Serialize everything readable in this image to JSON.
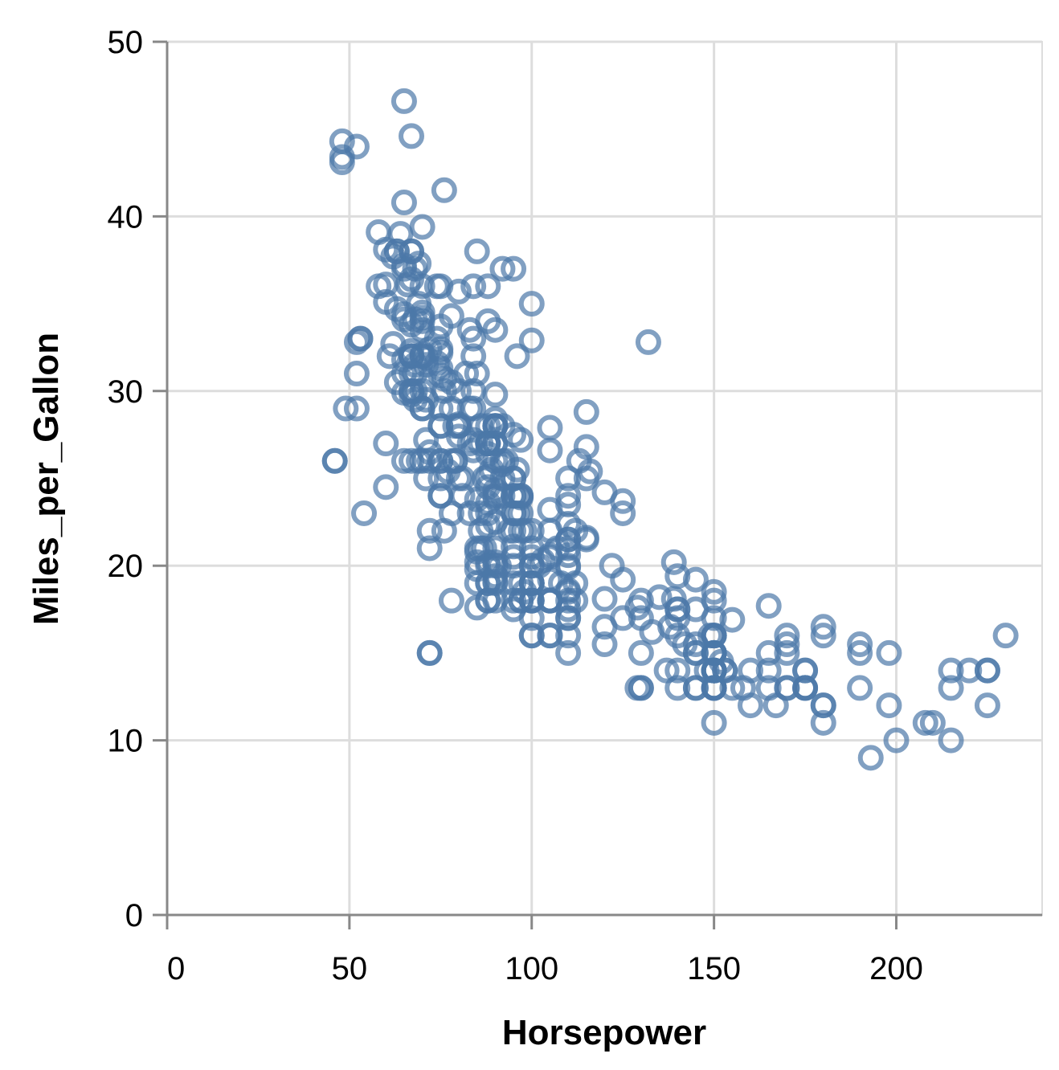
{
  "chart_data": {
    "type": "scatter",
    "x_label": "Horsepower",
    "y_label": "Miles_per_Gallon",
    "xlim": [
      0,
      240
    ],
    "ylim": [
      0,
      50
    ],
    "xticks": [
      0,
      50,
      100,
      150,
      200
    ],
    "yticks": [
      0,
      10,
      20,
      30,
      40,
      50
    ],
    "grid": true,
    "color": "#4c78a8",
    "x": [
      130,
      165,
      150,
      150,
      140,
      198,
      220,
      215,
      225,
      190,
      170,
      160,
      150,
      225,
      95,
      95,
      97,
      85,
      88,
      46,
      87,
      90,
      95,
      113,
      90,
      215,
      200,
      210,
      193,
      88,
      90,
      95,
      100,
      105,
      100,
      88,
      100,
      165,
      175,
      153,
      150,
      180,
      170,
      175,
      110,
      72,
      100,
      88,
      86,
      90,
      70,
      76,
      65,
      69,
      60,
      70,
      95,
      80,
      54,
      90,
      86,
      165,
      175,
      150,
      153,
      150,
      208,
      155,
      160,
      190,
      97,
      150,
      130,
      140,
      150,
      112,
      76,
      87,
      69,
      86,
      92,
      97,
      80,
      88,
      175,
      150,
      145,
      137,
      150,
      198,
      150,
      158,
      150,
      215,
      225,
      175,
      105,
      100,
      100,
      88,
      95,
      46,
      150,
      167,
      170,
      180,
      100,
      88,
      72,
      94,
      90,
      85,
      107,
      90,
      145,
      230,
      49,
      75,
      91,
      112,
      150,
      110,
      122,
      180,
      95,
      100,
      100,
      67,
      80,
      65,
      75,
      100,
      110,
      105,
      140,
      150,
      150,
      140,
      150,
      83,
      67,
      78,
      52,
      61,
      75,
      75,
      75,
      97,
      93,
      67,
      95,
      105,
      72,
      72,
      170,
      145,
      150,
      148,
      110,
      105,
      110,
      95,
      110,
      110,
      129,
      75,
      83,
      100,
      78,
      96,
      71,
      97,
      97,
      70,
      90,
      95,
      88,
      98,
      115,
      53,
      86,
      81,
      92,
      79,
      83,
      140,
      150,
      120,
      152,
      100,
      105,
      81,
      90,
      52,
      60,
      70,
      53,
      100,
      78,
      110,
      95,
      71,
      70,
      75,
      72,
      102,
      150,
      88,
      108,
      120,
      180,
      145,
      130,
      150,
      68,
      80,
      58,
      96,
      70,
      145,
      110,
      145,
      130,
      110,
      105,
      100,
      98,
      180,
      170,
      190,
      149,
      78,
      88,
      75,
      89,
      63,
      83,
      67,
      78,
      97,
      110,
      110,
      48,
      66,
      52,
      70,
      60,
      110,
      140,
      139,
      105,
      95,
      85,
      88,
      100,
      90,
      105,
      85,
      110,
      120,
      145,
      165,
      139,
      140,
      68,
      95,
      97,
      75,
      95,
      105,
      85,
      97,
      103,
      125,
      115,
      133,
      71,
      68,
      115,
      85,
      88,
      90,
      110,
      130,
      129,
      138,
      135,
      155,
      142,
      125,
      150,
      71,
      65,
      80,
      80,
      77,
      125,
      71,
      90,
      70,
      70,
      65,
      69,
      90,
      115,
      115,
      90,
      76,
      60,
      70,
      65,
      90,
      88,
      90,
      90,
      78,
      90,
      75,
      92,
      75,
      65,
      105,
      65,
      48,
      48,
      67,
      67,
      67,
      67,
      67,
      62,
      125,
      100,
      88,
      72,
      84,
      84,
      92,
      110,
      84,
      58,
      64,
      60,
      67,
      65,
      62,
      68,
      63,
      65,
      65,
      74,
      75,
      75,
      100,
      74,
      80,
      76,
      116,
      120,
      110,
      105,
      88,
      85,
      88,
      88,
      88,
      85,
      84,
      90,
      92,
      74,
      68,
      68,
      63,
      70,
      88,
      75,
      70,
      67,
      67,
      67,
      110,
      85,
      92,
      112,
      96,
      84,
      90,
      86,
      52,
      84,
      79,
      82,
      132,
      84,
      63,
      95,
      67,
      70,
      96,
      72,
      79
    ],
    "y": [
      18,
      15,
      18,
      16,
      17,
      15,
      14,
      14,
      14,
      15,
      15,
      14,
      15,
      14,
      24,
      22,
      18,
      21,
      27,
      26,
      25,
      24,
      25,
      26,
      21,
      10,
      10,
      11,
      9,
      27,
      28,
      25,
      19,
      16,
      17,
      19,
      18,
      14,
      14,
      14,
      14,
      12,
      13,
      13,
      18,
      22,
      19,
      18,
      23,
      28,
      30,
      30,
      31,
      35,
      27,
      26,
      24,
      25,
      23,
      20,
      21,
      13,
      14,
      15,
      14,
      17,
      11,
      13,
      12,
      13,
      19,
      15,
      13,
      13,
      14,
      18,
      22,
      21,
      26,
      22,
      28,
      23,
      28,
      27,
      13,
      14,
      13,
      14,
      15,
      12,
      13,
      13,
      14,
      13,
      12,
      13,
      18,
      16,
      18,
      18,
      23,
      26,
      11,
      12,
      13,
      12,
      18,
      20,
      21,
      22,
      18,
      19,
      21,
      26,
      15,
      16,
      29,
      24,
      20,
      19,
      15,
      24,
      20,
      11,
      20,
      21,
      19,
      32,
      28,
      26,
      25,
      16,
      16,
      18,
      16,
      13,
      14,
      14,
      14,
      29,
      26,
      26,
      31,
      32,
      28,
      24,
      26,
      24,
      26,
      31,
      19,
      18,
      15,
      15,
      16,
      15,
      16,
      14,
      17,
      16,
      15,
      18,
      21,
      20,
      13,
      29,
      23,
      20,
      23,
      24,
      25,
      24,
      18,
      29,
      19,
      23,
      23,
      22,
      25,
      33,
      28,
      25,
      25,
      26,
      27,
      17.5,
      16,
      15.5,
      14.5,
      22,
      22,
      24,
      22.5,
      29,
      24.5,
      29,
      33,
      20,
      18,
      18.5,
      17.5,
      29.5,
      32,
      28,
      26.5,
      20,
      13,
      19,
      19,
      16.5,
      16.5,
      13,
      13,
      13,
      31.5,
      30,
      36,
      25.5,
      33.5,
      17.5,
      17,
      15.5,
      15,
      17.5,
      20.5,
      19,
      18.5,
      16,
      15.5,
      15.5,
      16,
      29,
      24.5,
      26,
      25.5,
      30.5,
      33.5,
      30,
      30.5,
      22,
      21.5,
      21.5,
      43.1,
      36.1,
      32.8,
      39.4,
      36.1,
      19.9,
      19.4,
      20.2,
      19.2,
      20.5,
      20.2,
      25.1,
      20.5,
      19.4,
      20.6,
      20.8,
      18.6,
      18.1,
      19.2,
      17.7,
      18.1,
      17.5,
      30,
      27.5,
      27.2,
      30.9,
      21.1,
      23.2,
      23.8,
      23.9,
      20.3,
      17,
      21.6,
      16.2,
      31.5,
      29.5,
      21.5,
      19.8,
      22.3,
      20.2,
      20.6,
      17,
      17.6,
      16.5,
      18.2,
      16.9,
      15.5,
      19.2,
      18.5,
      31.9,
      34.1,
      35.7,
      27.4,
      25.4,
      23,
      27.2,
      23.9,
      34.2,
      34.5,
      31.8,
      37.3,
      28.4,
      28.8,
      26.8,
      33.5,
      41.5,
      38.1,
      32.1,
      37.2,
      28,
      26.4,
      24.3,
      19.1,
      34.3,
      29.8,
      31.3,
      37,
      32.2,
      46.6,
      27.9,
      40.8,
      44.3,
      43.4,
      36.4,
      30,
      44.6,
      33.8,
      29.8,
      32.7,
      23.7,
      35,
      23.6,
      32.4,
      27.2,
      26.6,
      25.8,
      23.5,
      30,
      39.1,
      39,
      35.1,
      32.3,
      37,
      37.7,
      34.1,
      34.7,
      34.4,
      29.9,
      33,
      33.7,
      32.4,
      32.9,
      31.6,
      28.1,
      30.7,
      25.4,
      24.2,
      22.4,
      26.6,
      20.2,
      17.6,
      28,
      27,
      34,
      31,
      29,
      27,
      24,
      36,
      37,
      31,
      38,
      36,
      36,
      36,
      34,
      38,
      32,
      38,
      25,
      38,
      26,
      22,
      32,
      36,
      27,
      27,
      44,
      32,
      28,
      31,
      32.8,
      33,
      38,
      37,
      32,
      32,
      23,
      26,
      26
    ]
  }
}
